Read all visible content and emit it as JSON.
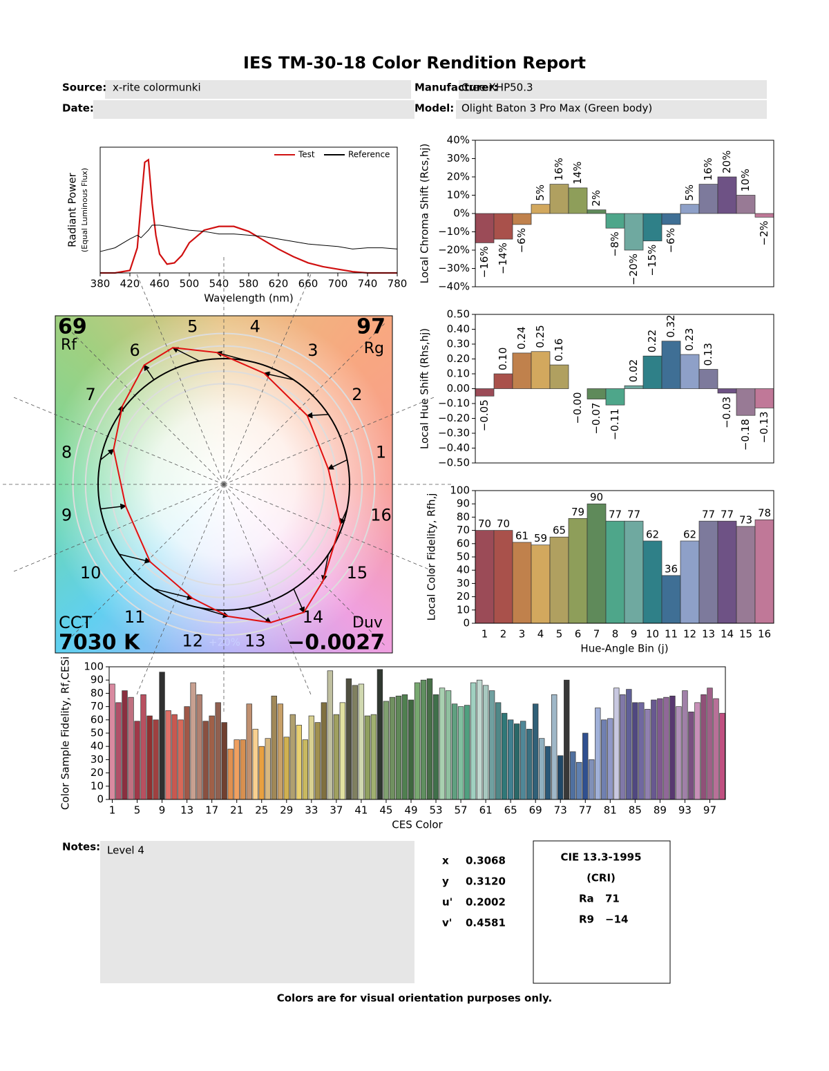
{
  "header": {
    "title": "IES TM-30-18 Color Rendition Report",
    "source_label": "Source:",
    "source": "x-rite colormunki",
    "manufacturer_label": "Manufacturer:",
    "manufacturer": "Cree XHP50.3",
    "date_label": "Date:",
    "model_label": "Model:",
    "model": "Olight Baton 3 Pro Max (Green body)"
  },
  "chart_data": [
    {
      "type": "line",
      "x_label": "Wavelength (nm)",
      "y_label": "Radiant Power",
      "y_sublabel": "(Equal Luminous Flux)",
      "x": [
        380,
        400,
        420,
        430,
        435,
        440,
        445,
        450,
        455,
        460,
        470,
        480,
        490,
        500,
        520,
        540,
        560,
        580,
        600,
        620,
        640,
        660,
        680,
        700,
        720,
        740,
        760,
        780
      ],
      "series": [
        {
          "name": "Test",
          "color": "#d01010",
          "values": [
            0,
            0,
            0.02,
            0.2,
            0.55,
            0.88,
            0.9,
            0.55,
            0.3,
            0.15,
            0.07,
            0.08,
            0.14,
            0.24,
            0.34,
            0.37,
            0.37,
            0.33,
            0.26,
            0.19,
            0.13,
            0.08,
            0.05,
            0.03,
            0.01,
            0,
            0,
            0
          ]
        },
        {
          "name": "Reference",
          "color": "#000000",
          "values": [
            0.17,
            0.2,
            0.27,
            0.3,
            0.28,
            0.31,
            0.34,
            0.38,
            0.38,
            0.38,
            0.37,
            0.36,
            0.35,
            0.34,
            0.33,
            0.31,
            0.31,
            0.3,
            0.29,
            0.27,
            0.25,
            0.23,
            0.22,
            0.21,
            0.19,
            0.2,
            0.2,
            0.19
          ]
        }
      ],
      "xlim": [
        380,
        780
      ],
      "xticks": [
        380,
        420,
        460,
        500,
        540,
        580,
        620,
        660,
        700,
        740,
        780
      ],
      "ylim": [
        0,
        1
      ],
      "legend": "upper right"
    },
    {
      "type": "bar",
      "y_label": "Local Chroma Shift (Rcs,hj)",
      "rotate_labels": true,
      "values": [
        -16,
        -14,
        -6,
        5,
        16,
        14,
        2,
        -8,
        -20,
        -15,
        -6,
        5,
        16,
        20,
        10,
        -2
      ],
      "value_labels": [
        "−16%",
        "−14%",
        "−6%",
        "5%",
        "16%",
        "14%",
        "2%",
        "−8%",
        "−20%",
        "−15%",
        "−6%",
        "5%",
        "16%",
        "20%",
        "10%",
        "−2%"
      ],
      "colors": [
        "#9b4b57",
        "#a9514b",
        "#c0814c",
        "#d2a85e",
        "#b0a060",
        "#8e9e5a",
        "#5f8a5a",
        "#4ea68a",
        "#6fa9a0",
        "#2f8088",
        "#3f6f95",
        "#8ea0c8",
        "#7d7a9c",
        "#6e5285",
        "#987a95",
        "#c07898"
      ],
      "ylim": [
        -40,
        40
      ],
      "yticks": [
        {
          "value": -40,
          "label": "−40%"
        },
        {
          "value": -30,
          "label": "−30%"
        },
        {
          "value": -20,
          "label": "−20%"
        },
        {
          "value": -10,
          "label": "−10%"
        },
        {
          "value": 0,
          "label": "0%"
        },
        {
          "value": 10,
          "label": "10%"
        },
        {
          "value": 20,
          "label": "20%"
        },
        {
          "value": 30,
          "label": "30%"
        },
        {
          "value": 40,
          "label": "40%"
        }
      ]
    },
    {
      "type": "bar",
      "y_label": "Local Hue Shift (Rhs,hj)",
      "rotate_labels": true,
      "values": [
        -0.05,
        0.1,
        0.24,
        0.25,
        0.16,
        -0.0,
        -0.07,
        -0.11,
        0.02,
        0.22,
        0.32,
        0.23,
        0.13,
        -0.03,
        -0.18,
        -0.13
      ],
      "value_labels": [
        "−0.05",
        "0.10",
        "0.24",
        "0.25",
        "0.16",
        "−0.00",
        "−0.07",
        "−0.11",
        "0.02",
        "0.22",
        "0.32",
        "0.23",
        "0.13",
        "−0.03",
        "−0.18",
        "−0.13"
      ],
      "colors": [
        "#9b4b57",
        "#a9514b",
        "#c0814c",
        "#d2a85e",
        "#b0a060",
        "#8e9e5a",
        "#5f8a5a",
        "#4ea68a",
        "#6fa9a0",
        "#2f8088",
        "#3f6f95",
        "#8ea0c8",
        "#7d7a9c",
        "#6e5285",
        "#987a95",
        "#c07898"
      ],
      "ylim": [
        -0.5,
        0.5
      ],
      "yticks": [
        {
          "value": -0.5,
          "label": "−0.50"
        },
        {
          "value": -0.4,
          "label": "−0.40"
        },
        {
          "value": -0.3,
          "label": "−0.30"
        },
        {
          "value": -0.2,
          "label": "−0.20"
        },
        {
          "value": -0.1,
          "label": "−0.10"
        },
        {
          "value": 0,
          "label": "0.00"
        },
        {
          "value": 0.1,
          "label": "0.10"
        },
        {
          "value": 0.2,
          "label": "0.20"
        },
        {
          "value": 0.3,
          "label": "0.30"
        },
        {
          "value": 0.4,
          "label": "0.40"
        },
        {
          "value": 0.5,
          "label": "0.50"
        }
      ]
    },
    {
      "type": "bar",
      "x_label": "Hue-Angle Bin (j)",
      "y_label": "Local Color Fidelity, Rfh,j",
      "categories": [
        "1",
        "2",
        "3",
        "4",
        "5",
        "6",
        "7",
        "8",
        "9",
        "10",
        "11",
        "12",
        "13",
        "14",
        "15",
        "16"
      ],
      "values": [
        70,
        70,
        61,
        59,
        65,
        79,
        90,
        77,
        77,
        62,
        36,
        62,
        77,
        77,
        73,
        78
      ],
      "colors": [
        "#9b4b57",
        "#a9514b",
        "#c0814c",
        "#d2a85e",
        "#b0a060",
        "#8e9e5a",
        "#5f8a5a",
        "#4ea68a",
        "#6fa9a0",
        "#2f8088",
        "#3f6f95",
        "#8ea0c8",
        "#7d7a9c",
        "#6e5285",
        "#987a95",
        "#c07898"
      ],
      "show_values": true,
      "ylim": [
        0,
        100
      ],
      "yticks": [
        0,
        10,
        20,
        30,
        40,
        50,
        60,
        70,
        80,
        90,
        100
      ]
    },
    {
      "type": "bar",
      "x_label": "CES Color",
      "y_label": "Color Sample Fidelity, Rf,CESi",
      "x": [
        1,
        2,
        3,
        4,
        5,
        6,
        7,
        8,
        9,
        10,
        11,
        12,
        13,
        14,
        15,
        16,
        17,
        18,
        19,
        20,
        21,
        22,
        23,
        24,
        25,
        26,
        27,
        28,
        29,
        30,
        31,
        32,
        33,
        34,
        35,
        36,
        37,
        38,
        39,
        40,
        41,
        42,
        43,
        44,
        45,
        46,
        47,
        48,
        49,
        50,
        51,
        52,
        53,
        54,
        55,
        56,
        57,
        58,
        59,
        60,
        61,
        62,
        63,
        64,
        65,
        66,
        67,
        68,
        69,
        70,
        71,
        72,
        73,
        74,
        75,
        76,
        77,
        78,
        79,
        80,
        81,
        82,
        83,
        84,
        85,
        86,
        87,
        88,
        89,
        90,
        91,
        92,
        93,
        94,
        95,
        96,
        97,
        98,
        99
      ],
      "values": [
        87,
        73,
        82,
        77,
        59,
        79,
        63,
        60,
        96,
        67,
        64,
        60,
        70,
        88,
        79,
        59,
        63,
        73,
        58,
        38,
        45,
        45,
        72,
        53,
        40,
        46,
        78,
        72,
        47,
        64,
        56,
        45,
        63,
        58,
        73,
        97,
        64,
        73,
        91,
        86,
        87,
        63,
        64,
        98,
        74,
        77,
        78,
        79,
        75,
        88,
        90,
        91,
        79,
        84,
        82,
        72,
        70,
        71,
        88,
        90,
        86,
        82,
        73,
        65,
        60,
        57,
        59,
        53,
        72,
        46,
        40,
        79,
        33,
        90,
        36,
        28,
        50,
        30,
        69,
        60,
        61,
        84,
        79,
        83,
        73,
        73,
        68,
        75,
        76,
        77,
        78,
        70,
        82,
        66,
        73,
        79,
        84,
        76,
        65
      ],
      "colors": [
        "#d98aa0",
        "#b05068",
        "#8a3040",
        "#c07080",
        "#a03848",
        "#b85060",
        "#903030",
        "#a04040",
        "#303030",
        "#e07068",
        "#c85850",
        "#d86858",
        "#a05848",
        "#c8a090",
        "#b08070",
        "#8a5040",
        "#a06048",
        "#906050",
        "#704030",
        "#e09050",
        "#f0a060",
        "#d89050",
        "#c09070",
        "#f8d090",
        "#e8a040",
        "#d8b880",
        "#a08858",
        "#c8a068",
        "#d0b050",
        "#b0a070",
        "#e8d070",
        "#c8b860",
        "#d8d090",
        "#a09050",
        "#807040",
        "#c0c0a0",
        "#a0a060",
        "#e0e0a0",
        "#505040",
        "#808060",
        "#d0d8b0",
        "#90a060",
        "#a0b070",
        "#303830",
        "#80a070",
        "#709060",
        "#608858",
        "#508050",
        "#406840",
        "#78a870",
        "#609060",
        "#487048",
        "#40704a",
        "#a8d0b0",
        "#90c0a0",
        "#60a080",
        "#80c0a0",
        "#50a080",
        "#a0d0c0",
        "#c0d8d0",
        "#a8c8c0",
        "#70a0a0",
        "#508888",
        "#307878",
        "#408090",
        "#2a6868",
        "#508898",
        "#3a7080",
        "#306078",
        "#90b0c0",
        "#2a5878",
        "#a0b8c8",
        "#204868",
        "#383838",
        "#5070a0",
        "#6080b0",
        "#305090",
        "#8090b8",
        "#a0b0d8",
        "#7080b0",
        "#9098c8",
        "#c8c8e0",
        "#8078a8",
        "#606098",
        "#504880",
        "#7068a0",
        "#9080b0",
        "#685890",
        "#805890",
        "#906898",
        "#583870",
        "#b090b8",
        "#a080a8",
        "#7a5080",
        "#c890b8",
        "#905078",
        "#a06088",
        "#b87098",
        "#c05080"
      ],
      "xlim": [
        0.5,
        99.5
      ],
      "xticks": [
        1,
        5,
        9,
        13,
        17,
        21,
        25,
        29,
        33,
        37,
        41,
        45,
        49,
        53,
        57,
        61,
        65,
        69,
        73,
        77,
        81,
        85,
        89,
        93,
        97
      ],
      "ylim": [
        0,
        100
      ],
      "yticks": [
        0,
        10,
        20,
        30,
        40,
        50,
        60,
        70,
        80,
        90,
        100
      ]
    }
  ],
  "vector_graphic": {
    "rf": 69,
    "rf_label": "Rf",
    "rg": 97,
    "rg_label": "Rg",
    "cct_label": "CCT",
    "cct": "7030 K",
    "duv_label": "Duv",
    "duv": "−0.0027",
    "ring_label": "+20%"
  },
  "notes": {
    "label": "Notes:",
    "text": "Level 4"
  },
  "chromaticity": {
    "rows": [
      [
        "x",
        "0.3068"
      ],
      [
        "y",
        "0.3120"
      ],
      [
        "u'",
        "0.2002"
      ],
      [
        "v'",
        "0.4581"
      ]
    ]
  },
  "cri": {
    "title": "CIE 13.3-1995",
    "subtitle": "(CRI)",
    "rows": [
      [
        "Ra",
        "71"
      ],
      [
        "R9",
        "−14"
      ]
    ]
  },
  "footer": "Colors are for visual orientation purposes only."
}
